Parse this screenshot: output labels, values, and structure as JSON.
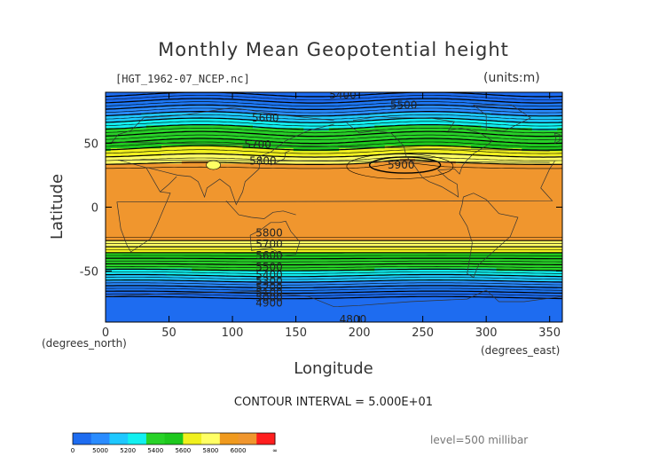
{
  "chart_data": {
    "type": "contour",
    "title": "Monthly Mean Geopotential height",
    "subtitle_left": "[HGT_1962-07_NCEP.nc]",
    "subtitle_right": "(units:m)",
    "xlabel": "Longitude",
    "ylabel": "Latitude",
    "x_unit_label": "(degrees_east)",
    "y_unit_label": "(degrees_north)",
    "xlim": [
      0,
      360
    ],
    "ylim": [
      -90,
      90
    ],
    "x_ticks": [
      0,
      50,
      100,
      150,
      200,
      250,
      300,
      350
    ],
    "y_ticks": [
      -50,
      0,
      50
    ],
    "contour_interval_text": "CONTOUR INTERVAL = 5.000E+01",
    "level_text": "level=500 millibar",
    "contour_labels": [
      {
        "text": "5400",
        "x": 187,
        "y": 88
      },
      {
        "text": "5500",
        "x": 235,
        "y": 80
      },
      {
        "text": "5600",
        "x": 126,
        "y": 70
      },
      {
        "text": "5700",
        "x": 120,
        "y": 49
      },
      {
        "text": "5800",
        "x": 124,
        "y": 36
      },
      {
        "text": "5900",
        "x": 233,
        "y": 33
      },
      {
        "text": "5800",
        "x": 129,
        "y": -20
      },
      {
        "text": "5700",
        "x": 129,
        "y": -29
      },
      {
        "text": "5600",
        "x": 129,
        "y": -38
      },
      {
        "text": "5500",
        "x": 129,
        "y": -47
      },
      {
        "text": "5400",
        "x": 129,
        "y": -53
      },
      {
        "text": "5300",
        "x": 129,
        "y": -58
      },
      {
        "text": "5200",
        "x": 129,
        "y": -63
      },
      {
        "text": "5100",
        "x": 129,
        "y": -67
      },
      {
        "text": "5000",
        "x": 129,
        "y": -71
      },
      {
        "text": "4900",
        "x": 129,
        "y": -75
      },
      {
        "text": "4800",
        "x": 195,
        "y": -88
      }
    ],
    "colorbar": {
      "colors": [
        "#1e6cf0",
        "#2a8cff",
        "#1ec8ff",
        "#12f0f0",
        "#28d228",
        "#1ec81e",
        "#f0f01e",
        "#ffff64",
        "#f09a1e",
        "#f0962e",
        "#ff1e1e"
      ],
      "tick_labels": [
        "0",
        "5000",
        "5200",
        "5400",
        "5600",
        "5800",
        "6000",
        "∞"
      ]
    }
  }
}
